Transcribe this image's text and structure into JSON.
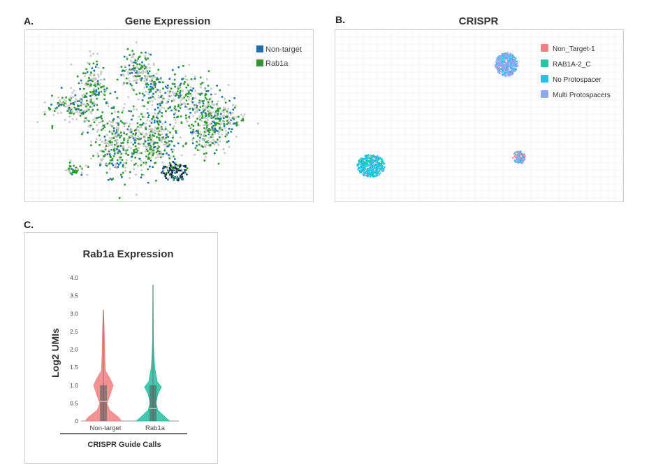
{
  "panels": {
    "a": {
      "letter": "A.",
      "title": "Gene Expression"
    },
    "b": {
      "letter": "B.",
      "title": "CRISPR"
    },
    "c": {
      "letter": "C.",
      "title": "Rab1a Expression"
    }
  },
  "chart_data": [
    {
      "type": "scatter",
      "title": "Gene Expression",
      "legend_position": "top-right",
      "grid": true,
      "series": [
        {
          "name": "Non-target",
          "color": "#1f6fb5"
        },
        {
          "name": "Rab1a",
          "color": "#2e9a2e"
        }
      ],
      "background_color": "#c8c8c8",
      "cluster_color": "#0d2a3f"
    },
    {
      "type": "scatter",
      "title": "CRISPR",
      "legend_position": "top-right",
      "grid": true,
      "series": [
        {
          "name": "Non_Target-1",
          "color": "#f08080"
        },
        {
          "name": "RAB1A-2_C",
          "color": "#1fc9a4"
        },
        {
          "name": "No Protospacer",
          "color": "#1ec3e8"
        },
        {
          "name": "Multi Protospacers",
          "color": "#8fa8f5"
        }
      ]
    },
    {
      "type": "violin",
      "title": "Rab1a Expression",
      "xlabel": "CRISPR Guide Calls",
      "ylabel": "Log2 UMIs",
      "ylim": [
        0,
        4
      ],
      "yticks": [
        "0",
        "0.5",
        "1.0",
        "1.5",
        "2.0",
        "2.5",
        "3.0",
        "3.5",
        "4.0"
      ],
      "categories": [
        "Non-target",
        "Rab1a"
      ],
      "series": [
        {
          "name": "Non-target",
          "color": "#f08080",
          "max": 3.1,
          "q1": 0.0,
          "median": 0.55,
          "q3": 1.0
        },
        {
          "name": "Rab1a",
          "color": "#1fbfa0",
          "max": 3.8,
          "q1": 0.0,
          "median": 0.35,
          "q3": 1.0
        }
      ]
    }
  ]
}
